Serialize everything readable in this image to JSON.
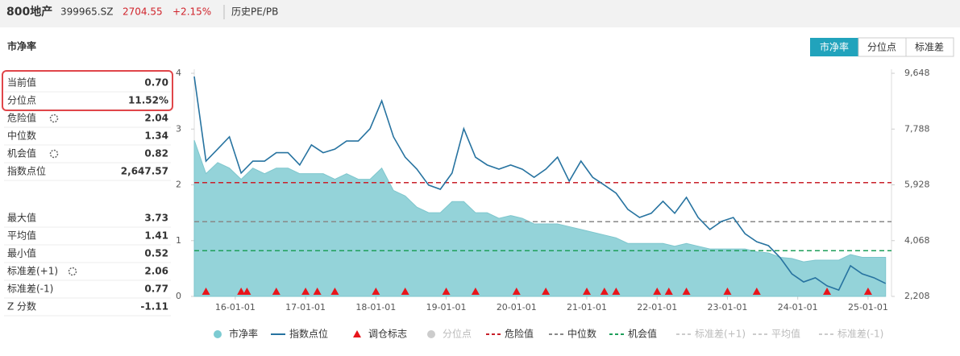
{
  "header": {
    "name": "800地产",
    "code": "399965.SZ",
    "price": "2704.55",
    "change": "+2.15%",
    "tab": "历史PE/PB"
  },
  "section_title": "市净率",
  "buttons": [
    "市净率",
    "分位点",
    "标准差"
  ],
  "panel": {
    "rows": [
      [
        "当前值",
        "0.70"
      ],
      [
        "分位点",
        "11.52%"
      ],
      [
        "危险值",
        "2.04"
      ],
      [
        "中位数",
        "1.34"
      ],
      [
        "机会值",
        "0.82"
      ],
      [
        "指数点位",
        "2,647.57"
      ],
      [
        "最大值",
        "3.73"
      ],
      [
        "平均值",
        "1.41"
      ],
      [
        "最小值",
        "0.52"
      ],
      [
        "标准差(+1)",
        "2.06"
      ],
      [
        "标准差(-1)",
        "0.77"
      ],
      [
        "Z 分数",
        "-1.11"
      ]
    ]
  },
  "chart_data": {
    "type": "area-line",
    "x": [
      "15-06-01",
      "15-08-01",
      "15-10-01",
      "15-12-01",
      "16-02-01",
      "16-04-01",
      "16-06-01",
      "16-08-01",
      "16-10-01",
      "16-12-01",
      "17-02-01",
      "17-04-01",
      "17-06-01",
      "17-08-01",
      "17-10-01",
      "17-12-01",
      "18-02-01",
      "18-04-01",
      "18-06-01",
      "18-08-01",
      "18-10-01",
      "18-12-01",
      "19-02-01",
      "19-04-01",
      "19-06-01",
      "19-08-01",
      "19-10-01",
      "19-12-01",
      "20-02-01",
      "20-04-01",
      "20-06-01",
      "20-08-01",
      "20-10-01",
      "20-12-01",
      "21-02-01",
      "21-04-01",
      "21-06-01",
      "21-08-01",
      "21-10-01",
      "21-12-01",
      "22-02-01",
      "22-04-01",
      "22-06-01",
      "22-08-01",
      "22-10-01",
      "22-12-01",
      "23-02-01",
      "23-04-01",
      "23-06-01",
      "23-08-01",
      "23-10-01",
      "23-12-01",
      "24-02-01",
      "24-04-01",
      "24-06-01",
      "24-08-01",
      "24-10-01",
      "24-12-01",
      "25-02-01",
      "25-04-01"
    ],
    "xlim": [
      "15-06-01",
      "25-05-01"
    ],
    "xticks": [
      "16-01-01",
      "17-01-01",
      "18-01-01",
      "19-01-01",
      "20-01-01",
      "21-01-01",
      "22-01-01",
      "23-01-01",
      "24-01-01",
      "25-01-01"
    ],
    "ylim": [
      0,
      4
    ],
    "yticks": [
      0,
      1,
      2,
      3,
      4
    ],
    "y2lim": [
      2208,
      9648
    ],
    "y2ticks": [
      {
        "value": 2208,
        "label": "2,208"
      },
      {
        "value": 4068,
        "label": "4,068"
      },
      {
        "value": 5928,
        "label": "5,928"
      },
      {
        "value": 7788,
        "label": "7,788"
      },
      {
        "value": 9648,
        "label": "9,648"
      }
    ],
    "series": [
      {
        "name": "市净率",
        "color": "#94d3d9",
        "style": "area",
        "values": [
          2.8,
          2.2,
          2.4,
          2.3,
          2.1,
          2.3,
          2.2,
          2.3,
          2.3,
          2.2,
          2.2,
          2.2,
          2.1,
          2.2,
          2.1,
          2.1,
          2.3,
          1.9,
          1.8,
          1.6,
          1.5,
          1.5,
          1.7,
          1.7,
          1.5,
          1.5,
          1.4,
          1.45,
          1.4,
          1.3,
          1.3,
          1.3,
          1.25,
          1.2,
          1.15,
          1.1,
          1.05,
          0.95,
          0.95,
          0.95,
          0.95,
          0.9,
          0.95,
          0.9,
          0.85,
          0.85,
          0.85,
          0.85,
          0.8,
          0.78,
          0.7,
          0.68,
          0.62,
          0.65,
          0.65,
          0.65,
          0.75,
          0.7,
          0.7,
          0.7
        ]
      },
      {
        "name": "指数点位",
        "color": "#2773a0",
        "style": "line",
        "axis": "y2",
        "values": [
          9540,
          6720,
          7120,
          7530,
          6320,
          6720,
          6720,
          7000,
          7000,
          6590,
          7260,
          7000,
          7120,
          7390,
          7390,
          7800,
          8730,
          7530,
          6850,
          6450,
          5920,
          5780,
          6320,
          7800,
          6850,
          6590,
          6450,
          6590,
          6450,
          6180,
          6450,
          6850,
          6050,
          6720,
          6180,
          5920,
          5650,
          5110,
          4840,
          4980,
          5380,
          4980,
          5510,
          4840,
          4440,
          4710,
          4840,
          4300,
          4030,
          3900,
          3500,
          2960,
          2690,
          2830,
          2560,
          2420,
          3230,
          2960,
          2830,
          2640
        ]
      }
    ],
    "markers": {
      "name": "调仓标志",
      "color": "#e8151b",
      "x": [
        "15-08-01",
        "16-02-01",
        "16-03-01",
        "16-08-01",
        "17-01-01",
        "17-03-01",
        "17-06-01",
        "18-01-01",
        "18-06-01",
        "19-01-01",
        "19-06-01",
        "20-01-01",
        "20-06-01",
        "21-01-01",
        "21-04-01",
        "21-06-01",
        "22-01-01",
        "22-03-01",
        "22-06-01",
        "23-01-01",
        "23-06-01",
        "24-06-01",
        "25-01-01"
      ]
    },
    "ref_lines": [
      {
        "name": "危险值",
        "value": 2.04,
        "color": "#c8202a"
      },
      {
        "name": "中位数",
        "value": 1.34,
        "color": "#888888"
      },
      {
        "name": "机会值",
        "value": 0.82,
        "color": "#1e9e5a"
      }
    ],
    "inactive_legend": [
      {
        "name": "分位点",
        "after": 2
      },
      {
        "name": "标准差(+1)",
        "after": 5
      },
      {
        "name": "平均值",
        "after": 5
      },
      {
        "name": "标准差(-1)",
        "after": 5
      }
    ]
  }
}
